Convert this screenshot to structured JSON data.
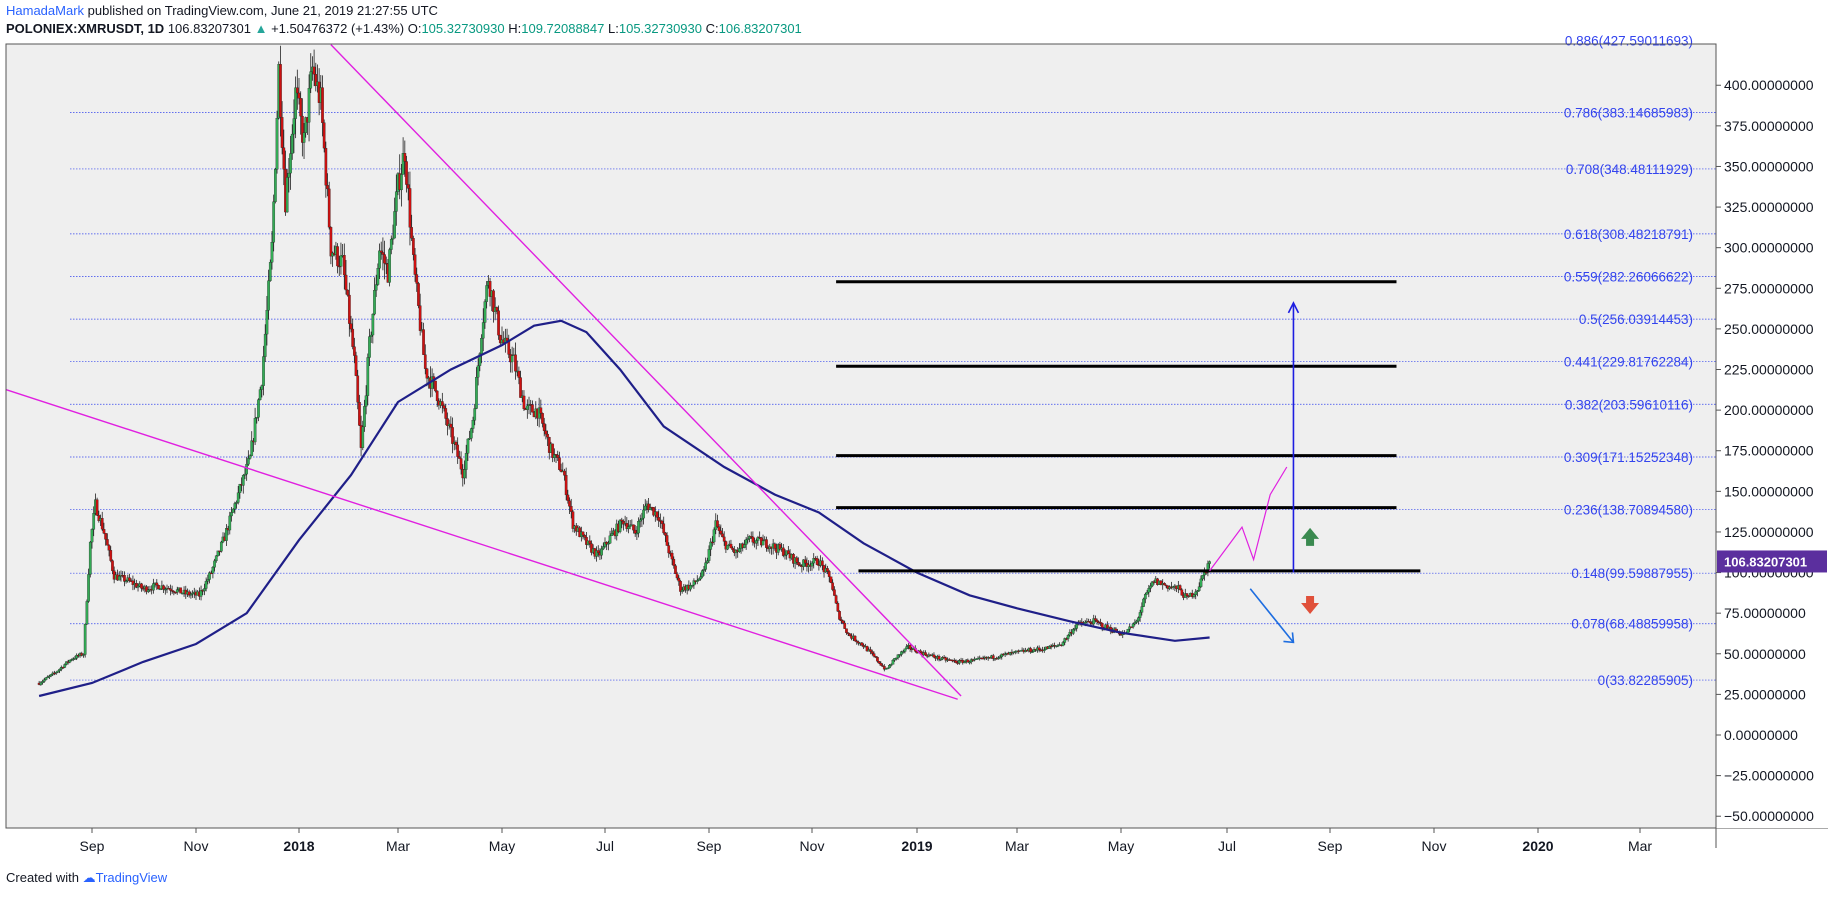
{
  "header": {
    "author": "HamadaMark",
    "published": "published on TradingView.com, June 21, 2019 21:27:55 UTC",
    "symbol": "POLONIEX:XMRUSDT, 1D",
    "last": "106.83207301",
    "change": "+1.50476372 (+1.43%)",
    "o_label": "O:",
    "o_value": "105.32730930",
    "h_label": "H:",
    "h_value": "109.72088847",
    "l_label": "L:",
    "l_value": "105.32730930",
    "c_label": "C:",
    "c_value": "106.83207301"
  },
  "footer": {
    "created_with": "Created with",
    "brand": "TradingView"
  },
  "colors": {
    "background": "#efefef",
    "up_candle": "#33aa55",
    "down_candle": "#cc1111",
    "moving_average": "#1f1f88",
    "trendline": "#e020e0",
    "fib_text": "#3344ee",
    "fib_line": "#3344ee",
    "level_line": "#000000",
    "price_badge": "#5b2f9e"
  },
  "chart_data": {
    "type": "candlestick",
    "symbol": "POLONIEX:XMRUSDT",
    "interval": "1D",
    "y_ticks": [
      "400.00000000",
      "375.00000000",
      "350.00000000",
      "325.00000000",
      "300.00000000",
      "275.00000000",
      "250.00000000",
      "225.00000000",
      "200.00000000",
      "175.00000000",
      "150.00000000",
      "125.00000000",
      "100.00000000",
      "75.00000000",
      "50.00000000",
      "25.00000000",
      "0.00000000",
      "−25.00000000",
      "−50.00000000"
    ],
    "y_tick_values": [
      400,
      375,
      350,
      325,
      300,
      275,
      250,
      225,
      200,
      175,
      150,
      125,
      100,
      75,
      50,
      25,
      0,
      -25,
      -50
    ],
    "ylim": [
      -60,
      432
    ],
    "x_ticks": [
      {
        "label": "Sep",
        "month": "2017-09",
        "bold": false
      },
      {
        "label": "Nov",
        "month": "2017-11",
        "bold": false
      },
      {
        "label": "2018",
        "month": "2018-01",
        "bold": true
      },
      {
        "label": "Mar",
        "month": "2018-03",
        "bold": false
      },
      {
        "label": "May",
        "month": "2018-05",
        "bold": false
      },
      {
        "label": "Jul",
        "month": "2018-07",
        "bold": false
      },
      {
        "label": "Sep",
        "month": "2018-09",
        "bold": false
      },
      {
        "label": "Nov",
        "month": "2018-11",
        "bold": false
      },
      {
        "label": "2019",
        "month": "2019-01",
        "bold": true
      },
      {
        "label": "Mar",
        "month": "2019-03",
        "bold": false
      },
      {
        "label": "May",
        "month": "2019-05",
        "bold": false
      },
      {
        "label": "Jul",
        "month": "2019-07",
        "bold": false
      },
      {
        "label": "Sep",
        "month": "2019-09",
        "bold": false
      },
      {
        "label": "Nov",
        "month": "2019-11",
        "bold": false
      },
      {
        "label": "2020",
        "month": "2020-01",
        "bold": true
      },
      {
        "label": "Mar",
        "month": "2020-03",
        "bold": false
      }
    ],
    "fib_levels": [
      {
        "ratio": "0.886",
        "price": 427.59011693,
        "label": "0.886(427.59011693)"
      },
      {
        "ratio": "0.786",
        "price": 383.14685983,
        "label": "0.786(383.14685983)"
      },
      {
        "ratio": "0.708",
        "price": 348.48111929,
        "label": "0.708(348.48111929)"
      },
      {
        "ratio": "0.618",
        "price": 308.48218791,
        "label": "0.618(308.48218791)"
      },
      {
        "ratio": "0.559",
        "price": 282.26066622,
        "label": "0.559(282.26066622)"
      },
      {
        "ratio": "0.5",
        "price": 256.03914453,
        "label": "0.5(256.03914453)"
      },
      {
        "ratio": "0.441",
        "price": 229.81762284,
        "label": "0.441(229.81762284)"
      },
      {
        "ratio": "0.382",
        "price": 203.59610116,
        "label": "0.382(203.59610116)"
      },
      {
        "ratio": "0.309",
        "price": 171.15252348,
        "label": "0.309(171.15252348)"
      },
      {
        "ratio": "0.236",
        "price": 138.7089458,
        "label": "0.236(138.70894580)"
      },
      {
        "ratio": "0.148",
        "price": 99.59887955,
        "label": "0.148(99.59887955)"
      },
      {
        "ratio": "0.078",
        "price": 68.48859958,
        "label": "0.078(68.48859958)"
      },
      {
        "ratio": "0",
        "price": 33.82285905,
        "label": "0(33.82285905)"
      }
    ],
    "current_price": 106.83207301,
    "current_price_label": "106.83207301",
    "horizontal_levels": [
      {
        "price": 279,
        "from": "2018-11-15",
        "to": "2019-10-10"
      },
      {
        "price": 227,
        "from": "2018-11-15",
        "to": "2019-10-10"
      },
      {
        "price": 172,
        "from": "2018-11-15",
        "to": "2019-10-10"
      },
      {
        "price": 140,
        "from": "2018-11-15",
        "to": "2019-10-10"
      },
      {
        "price": 101,
        "from": "2018-11-28",
        "to": "2019-10-24"
      }
    ],
    "price_path": [
      [
        "2017-08-01",
        32
      ],
      [
        "2017-08-10",
        38
      ],
      [
        "2017-08-20",
        47
      ],
      [
        "2017-08-27",
        50
      ],
      [
        "2017-08-31",
        118
      ],
      [
        "2017-09-03",
        142
      ],
      [
        "2017-09-08",
        125
      ],
      [
        "2017-09-14",
        98
      ],
      [
        "2017-09-22",
        95
      ],
      [
        "2017-10-01",
        90
      ],
      [
        "2017-10-10",
        92
      ],
      [
        "2017-10-18",
        90
      ],
      [
        "2017-10-26",
        87
      ],
      [
        "2017-11-03",
        86
      ],
      [
        "2017-11-10",
        100
      ],
      [
        "2017-11-18",
        122
      ],
      [
        "2017-11-25",
        145
      ],
      [
        "2017-12-03",
        170
      ],
      [
        "2017-12-10",
        220
      ],
      [
        "2017-12-16",
        300
      ],
      [
        "2017-12-20",
        410
      ],
      [
        "2017-12-24",
        330
      ],
      [
        "2017-12-30",
        395
      ],
      [
        "2018-01-04",
        365
      ],
      [
        "2018-01-09",
        410
      ],
      [
        "2018-01-14",
        390
      ],
      [
        "2018-01-20",
        300
      ],
      [
        "2018-01-27",
        290
      ],
      [
        "2018-02-03",
        230
      ],
      [
        "2018-02-07",
        175
      ],
      [
        "2018-02-12",
        240
      ],
      [
        "2018-02-18",
        300
      ],
      [
        "2018-02-23",
        285
      ],
      [
        "2018-03-01",
        338
      ],
      [
        "2018-03-05",
        360
      ],
      [
        "2018-03-10",
        290
      ],
      [
        "2018-03-17",
        225
      ],
      [
        "2018-03-24",
        210
      ],
      [
        "2018-04-01",
        185
      ],
      [
        "2018-04-08",
        162
      ],
      [
        "2018-04-14",
        195
      ],
      [
        "2018-04-19",
        250
      ],
      [
        "2018-04-23",
        282
      ],
      [
        "2018-04-30",
        245
      ],
      [
        "2018-05-08",
        230
      ],
      [
        "2018-05-15",
        200
      ],
      [
        "2018-05-22",
        200
      ],
      [
        "2018-05-30",
        175
      ],
      [
        "2018-06-06",
        162
      ],
      [
        "2018-06-12",
        130
      ],
      [
        "2018-06-20",
        118
      ],
      [
        "2018-06-27",
        110
      ],
      [
        "2018-07-05",
        123
      ],
      [
        "2018-07-12",
        132
      ],
      [
        "2018-07-19",
        125
      ],
      [
        "2018-07-26",
        142
      ],
      [
        "2018-08-02",
        135
      ],
      [
        "2018-08-09",
        110
      ],
      [
        "2018-08-15",
        90
      ],
      [
        "2018-08-22",
        92
      ],
      [
        "2018-08-29",
        100
      ],
      [
        "2018-09-05",
        130
      ],
      [
        "2018-09-10",
        118
      ],
      [
        "2018-09-17",
        112
      ],
      [
        "2018-09-25",
        120
      ],
      [
        "2018-10-05",
        118
      ],
      [
        "2018-10-15",
        113
      ],
      [
        "2018-10-25",
        105
      ],
      [
        "2018-11-05",
        107
      ],
      [
        "2018-11-12",
        95
      ],
      [
        "2018-11-16",
        75
      ],
      [
        "2018-11-22",
        62
      ],
      [
        "2018-12-01",
        55
      ],
      [
        "2018-12-08",
        47
      ],
      [
        "2018-12-14",
        40
      ],
      [
        "2018-12-20",
        48
      ],
      [
        "2018-12-27",
        54
      ],
      [
        "2019-01-05",
        50
      ],
      [
        "2019-01-15",
        47
      ],
      [
        "2019-01-25",
        45
      ],
      [
        "2019-02-05",
        46
      ],
      [
        "2019-02-15",
        48
      ],
      [
        "2019-02-25",
        50
      ],
      [
        "2019-03-07",
        52
      ],
      [
        "2019-03-17",
        53
      ],
      [
        "2019-03-27",
        56
      ],
      [
        "2019-04-05",
        68
      ],
      [
        "2019-04-15",
        70
      ],
      [
        "2019-04-25",
        65
      ],
      [
        "2019-05-03",
        62
      ],
      [
        "2019-05-10",
        70
      ],
      [
        "2019-05-15",
        85
      ],
      [
        "2019-05-20",
        95
      ],
      [
        "2019-05-27",
        92
      ],
      [
        "2019-06-03",
        90
      ],
      [
        "2019-06-08",
        84
      ],
      [
        "2019-06-14",
        90
      ],
      [
        "2019-06-21",
        107
      ]
    ],
    "ma_path": [
      [
        "2017-08-01",
        24
      ],
      [
        "2017-09-01",
        32
      ],
      [
        "2017-10-01",
        45
      ],
      [
        "2017-11-01",
        56
      ],
      [
        "2017-12-01",
        75
      ],
      [
        "2018-01-01",
        120
      ],
      [
        "2018-02-01",
        160
      ],
      [
        "2018-03-01",
        205
      ],
      [
        "2018-04-01",
        225
      ],
      [
        "2018-05-01",
        240
      ],
      [
        "2018-05-20",
        252
      ],
      [
        "2018-06-05",
        255
      ],
      [
        "2018-06-20",
        248
      ],
      [
        "2018-07-10",
        225
      ],
      [
        "2018-08-05",
        190
      ],
      [
        "2018-09-10",
        165
      ],
      [
        "2018-10-10",
        148
      ],
      [
        "2018-11-05",
        137
      ],
      [
        "2018-12-01",
        118
      ],
      [
        "2019-01-01",
        100
      ],
      [
        "2019-02-01",
        86
      ],
      [
        "2019-03-01",
        78
      ],
      [
        "2019-04-01",
        70
      ],
      [
        "2019-05-01",
        63
      ],
      [
        "2019-06-01",
        58
      ],
      [
        "2019-06-21",
        60
      ]
    ],
    "trendlines": [
      {
        "from": [
          "2018-01-20",
          425
        ],
        "to": [
          "2019-01-27",
          24
        ]
      },
      {
        "from": [
          "2017-06-15",
          222
        ],
        "to": [
          "2019-01-25",
          22
        ]
      }
    ],
    "projection_path": [
      [
        "2019-06-21",
        101
      ],
      [
        "2019-07-10",
        128
      ],
      [
        "2019-07-17",
        108
      ],
      [
        "2019-07-27",
        148
      ],
      [
        "2019-08-06",
        165
      ]
    ],
    "annotations": {
      "target_arrow": {
        "date": "2019-08-10",
        "from": 100,
        "to": 266
      },
      "down_arrow": {
        "from": [
          "2019-07-15",
          90
        ],
        "to": [
          "2019-08-10",
          57
        ]
      },
      "green_marker": {
        "date": "2019-08-20",
        "price": 122
      },
      "red_marker": {
        "date": "2019-08-20",
        "price": 80
      }
    }
  }
}
